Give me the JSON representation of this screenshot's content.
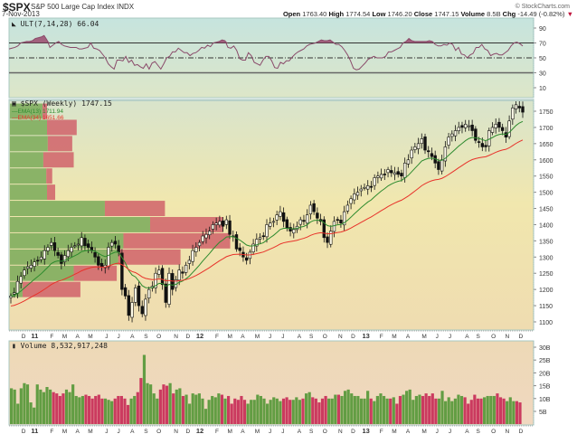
{
  "header": {
    "symbol": "$SPX",
    "name": "S&P 500 Large Cap Index INDX",
    "date": "7-Nov-2013",
    "brand": "© StockCharts.com",
    "open_label": "Open",
    "open": "1763.40",
    "high_label": "High",
    "high": "1774.54",
    "low_label": "Low",
    "low": "1746.20",
    "close_label": "Close",
    "close": "1747.15",
    "volume_label": "Volume",
    "volume": "8.5B",
    "chg_label": "Chg",
    "chg": "-14.49 (-0.82%)",
    "chg_arrow": "▼"
  },
  "colors": {
    "up_volume": "#5a9a3c",
    "down_volume": "#c8325a",
    "ema13": "#2e8b2e",
    "ema34": "#e8322a",
    "ult_line": "#8a4a6a",
    "ult_fill": "#9a4a6e",
    "vbp_up": "#7fad5e",
    "vbp_down": "#d0626a"
  },
  "chart_data": [
    {
      "type": "line",
      "title": "ULT(7,14,28) 66.04",
      "indicator": "Ultimate Oscillator",
      "params": "7,14,28",
      "last_value": 66.04,
      "ylim": [
        0,
        100
      ],
      "yticks": [
        90,
        70,
        50,
        30,
        10
      ],
      "reference_lines": [
        70,
        50,
        30
      ],
      "x_months": [
        "D",
        "11",
        "F",
        "M",
        "A",
        "M",
        "J",
        "J",
        "A",
        "S",
        "O",
        "N",
        "D",
        "12",
        "F",
        "M",
        "A",
        "M",
        "J",
        "J",
        "A",
        "S",
        "O",
        "N",
        "D",
        "13",
        "F",
        "M",
        "A",
        "M",
        "J",
        "J",
        "A",
        "S",
        "O",
        "N",
        "D"
      ],
      "values": [
        62,
        63,
        64,
        66,
        70,
        71,
        72,
        72,
        73,
        76,
        77,
        78,
        80,
        74,
        64,
        67,
        70,
        72,
        68,
        66,
        65,
        64,
        64,
        64,
        62,
        62,
        63,
        64,
        70,
        63,
        62,
        60,
        55,
        50,
        42,
        38,
        35,
        47,
        47,
        46,
        52,
        44,
        47,
        40,
        41,
        38,
        36,
        42,
        35,
        43,
        45,
        40,
        35,
        42,
        50,
        52,
        58,
        58,
        63,
        60,
        57,
        57,
        53,
        56,
        57,
        60,
        64,
        63,
        67,
        65,
        70,
        71,
        72,
        74,
        73,
        64,
        63,
        66,
        60,
        49,
        47,
        47,
        57,
        53,
        44,
        42,
        40,
        47,
        52,
        52,
        46,
        37,
        36,
        44,
        42,
        46,
        46,
        51,
        55,
        58,
        60,
        62,
        66,
        68,
        69,
        70,
        72,
        74,
        73,
        73,
        74,
        71,
        68,
        68,
        65,
        60,
        54,
        46,
        36,
        34,
        35,
        39,
        43,
        48,
        50,
        52,
        50,
        50,
        50,
        52,
        58,
        58,
        60,
        62,
        64,
        70,
        72,
        76,
        73,
        72,
        72,
        72,
        72,
        72,
        73,
        72,
        68,
        66,
        66,
        68,
        67,
        70,
        68,
        60,
        64,
        55,
        54,
        50,
        54,
        56,
        64,
        64,
        68,
        62,
        60,
        53,
        55,
        56,
        54,
        54,
        57,
        60,
        66,
        70,
        71,
        69,
        66
      ]
    },
    {
      "type": "candlestick",
      "title": "$SPX (Weekly) 1747.15",
      "series_labels": [
        "EMA(13) 1711.94",
        "EMA(34) 1651.66"
      ],
      "ylim": [
        1080,
        1790
      ],
      "yticks": [
        1750,
        1700,
        1650,
        1600,
        1550,
        1500,
        1450,
        1400,
        1350,
        1300,
        1250,
        1200,
        1150,
        1100
      ],
      "x_months": [
        "D",
        "11",
        "F",
        "M",
        "A",
        "M",
        "J",
        "J",
        "A",
        "S",
        "O",
        "N",
        "D",
        "12",
        "F",
        "M",
        "A",
        "M",
        "J",
        "J",
        "A",
        "S",
        "O",
        "N",
        "D",
        "13",
        "F",
        "M",
        "A",
        "M",
        "J",
        "J",
        "A",
        "S",
        "O",
        "N",
        "D"
      ],
      "closes": [
        1180,
        1190,
        1225,
        1240,
        1260,
        1270,
        1275,
        1285,
        1290,
        1300,
        1320,
        1330,
        1345,
        1320,
        1305,
        1280,
        1305,
        1320,
        1330,
        1335,
        1340,
        1360,
        1335,
        1330,
        1320,
        1300,
        1275,
        1270,
        1275,
        1330,
        1345,
        1340,
        1315,
        1200,
        1180,
        1120,
        1160,
        1205,
        1150,
        1125,
        1170,
        1200,
        1210,
        1250,
        1260,
        1215,
        1160,
        1250,
        1200,
        1230,
        1260,
        1250,
        1275,
        1290,
        1320,
        1330,
        1345,
        1365,
        1370,
        1380,
        1400,
        1405,
        1410,
        1395,
        1415,
        1370,
        1365,
        1325,
        1320,
        1300,
        1290,
        1315,
        1340,
        1355,
        1360,
        1365,
        1400,
        1405,
        1410,
        1430,
        1440,
        1410,
        1390,
        1380,
        1385,
        1395,
        1415,
        1410,
        1430,
        1460,
        1440,
        1420,
        1410,
        1360,
        1345,
        1380,
        1410,
        1415,
        1405,
        1440,
        1460,
        1480,
        1495,
        1500,
        1510,
        1515,
        1520,
        1515,
        1545,
        1550,
        1555,
        1555,
        1570,
        1560,
        1560,
        1555,
        1550,
        1590,
        1600,
        1630,
        1640,
        1650,
        1665,
        1630,
        1625,
        1610,
        1590,
        1570,
        1600,
        1640,
        1670,
        1680,
        1690,
        1700,
        1700,
        1710,
        1705,
        1690,
        1660,
        1655,
        1640,
        1640,
        1690,
        1700,
        1710,
        1700,
        1690,
        1670,
        1720,
        1760,
        1770,
        1760,
        1747
      ],
      "ema13_last": 1711.94,
      "ema34_last": 1651.66,
      "volume_by_price": [
        {
          "price_low": 1725,
          "price_high": 1775,
          "up": 44,
          "down": 6
        },
        {
          "price_low": 1675,
          "price_high": 1725,
          "up": 50,
          "down": 40
        },
        {
          "price_low": 1625,
          "price_high": 1675,
          "up": 51,
          "down": 33
        },
        {
          "price_low": 1575,
          "price_high": 1625,
          "up": 45,
          "down": 41
        },
        {
          "price_low": 1525,
          "price_high": 1575,
          "up": 49,
          "down": 8
        },
        {
          "price_low": 1475,
          "price_high": 1525,
          "up": 50,
          "down": 11
        },
        {
          "price_low": 1425,
          "price_high": 1475,
          "up": 128,
          "down": 81
        },
        {
          "price_low": 1375,
          "price_high": 1425,
          "up": 189,
          "down": 98
        },
        {
          "price_low": 1325,
          "price_high": 1375,
          "up": 153,
          "down": 144
        },
        {
          "price_low": 1275,
          "price_high": 1325,
          "up": 146,
          "down": 84
        },
        {
          "price_low": 1225,
          "price_high": 1275,
          "up": 86,
          "down": 58
        },
        {
          "price_low": 1175,
          "price_high": 1225,
          "up": 17,
          "down": 78
        }
      ]
    },
    {
      "type": "bar",
      "title": "Volume 8,532,917,248",
      "ylabel": "Volume",
      "ylim": [
        0,
        32
      ],
      "yticks": [
        "30B",
        "25B",
        "20B",
        "15B",
        "10B",
        "5B"
      ],
      "x_months": [
        "D",
        "11",
        "F",
        "M",
        "A",
        "M",
        "J",
        "J",
        "A",
        "S",
        "O",
        "N",
        "D",
        "12",
        "F",
        "M",
        "A",
        "M",
        "J",
        "J",
        "A",
        "S",
        "O",
        "N",
        "D",
        "13",
        "F",
        "M",
        "A",
        "M",
        "J",
        "J",
        "A",
        "S",
        "O",
        "N",
        "D"
      ],
      "values_billion": [
        14,
        13.5,
        8,
        14,
        16,
        15.5,
        8.5,
        6.5,
        15.5,
        13.5,
        12.5,
        14.5,
        13.5,
        12.5,
        12,
        11,
        12,
        13.5,
        12.5,
        15.5,
        11,
        10.5,
        11,
        11.5,
        11,
        10,
        11,
        11.5,
        10,
        10,
        9.5,
        9,
        10,
        11,
        11,
        10,
        7.5,
        10,
        11,
        12.5,
        18,
        27,
        16,
        15.5,
        12,
        10,
        13.5,
        15.5,
        15,
        16,
        12,
        13.5,
        14,
        11,
        11.5,
        8,
        12,
        11.5,
        12,
        10,
        6,
        9.5,
        11,
        10.5,
        12,
        11.5,
        10,
        11,
        8,
        10,
        9.5,
        11,
        9.5,
        8,
        9.5,
        9.5,
        11.5,
        11,
        10,
        8,
        9.5,
        10.5,
        10,
        9,
        10,
        10.5,
        9.5,
        9.5,
        10.5,
        9.5,
        10,
        12,
        12.5,
        10.5,
        10,
        8.5,
        10,
        11,
        10,
        10,
        11.5,
        11.5,
        11,
        13,
        13.5,
        12,
        11,
        11,
        10,
        10,
        13,
        10,
        9,
        11,
        12,
        11,
        10,
        10,
        10.5,
        8,
        11,
        11.5,
        13,
        13.5,
        9.5,
        11,
        11.5,
        11,
        12,
        11,
        12,
        10,
        10,
        13,
        9,
        10.5,
        9,
        10,
        11.5,
        11,
        10.5,
        8,
        9.5,
        11.5,
        10,
        10,
        10.5,
        11,
        11,
        11,
        12,
        10.5,
        10,
        9,
        10.5,
        9,
        9,
        8.5
      ],
      "last_volume": "8,532,917,248"
    }
  ]
}
